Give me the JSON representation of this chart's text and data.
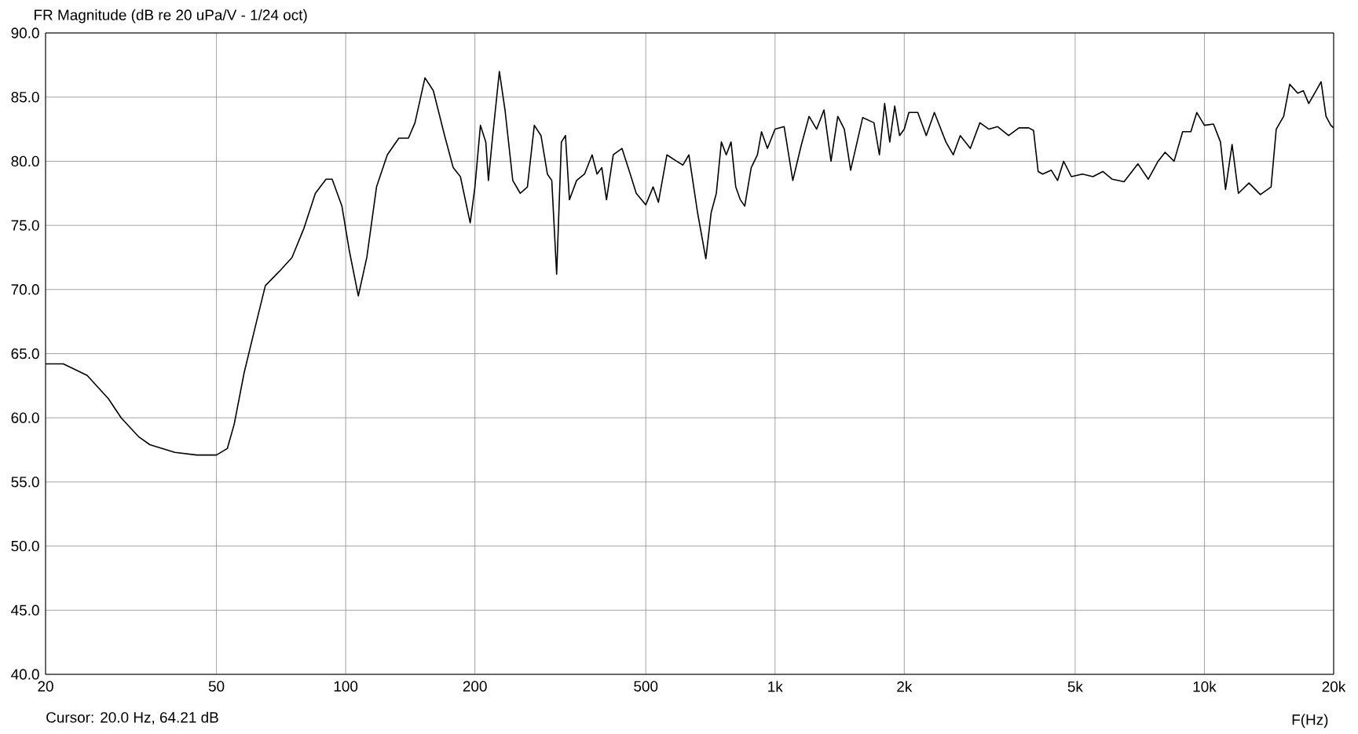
{
  "chart_data": {
    "type": "line",
    "title": "FR Magnitude (dB re 20 uPa/V - 1/24 oct)",
    "xlabel": "F(Hz)",
    "annotations": [
      "Cursor: 20.0 Hz, 64.21 dB"
    ],
    "log": "x",
    "grid": true,
    "color": "#000000",
    "xlim": [
      20,
      20000
    ],
    "xticks": [
      20,
      50,
      100,
      200,
      500,
      {
        "value": 1000,
        "label": "1k"
      },
      {
        "value": 2000,
        "label": "2k"
      },
      {
        "value": 5000,
        "label": "5k"
      },
      {
        "value": 10000,
        "label": "10k"
      },
      {
        "value": 20000,
        "label": "20k"
      }
    ],
    "ylim": [
      40,
      90
    ],
    "yticks": [
      {
        "value": 40,
        "label": "40.0"
      },
      {
        "value": 45,
        "label": "45.0"
      },
      {
        "value": 50,
        "label": "50.0"
      },
      {
        "value": 55,
        "label": "55.0"
      },
      {
        "value": 60,
        "label": "60.0"
      },
      {
        "value": 65,
        "label": "65.0"
      },
      {
        "value": 70,
        "label": "70.0"
      },
      {
        "value": 75,
        "label": "75.0"
      },
      {
        "value": 80,
        "label": "80.0"
      },
      {
        "value": 85,
        "label": "85.0"
      },
      {
        "value": 90,
        "label": "90.0"
      }
    ],
    "x": [
      20,
      22,
      25,
      28,
      30,
      33,
      35,
      40,
      45,
      50,
      53,
      55,
      58,
      62,
      65,
      70,
      75,
      80,
      85,
      90,
      93,
      98,
      102,
      107,
      112,
      118,
      125,
      133,
      140,
      145,
      153,
      160,
      170,
      178,
      185,
      195,
      200,
      206,
      212,
      215,
      220,
      228,
      235,
      245,
      255,
      265,
      275,
      285,
      295,
      302,
      310,
      318,
      325,
      332,
      345,
      360,
      375,
      385,
      395,
      405,
      420,
      440,
      460,
      475,
      500,
      520,
      535,
      560,
      590,
      610,
      630,
      660,
      690,
      710,
      730,
      750,
      770,
      790,
      810,
      830,
      850,
      880,
      910,
      930,
      960,
      1000,
      1050,
      1100,
      1150,
      1200,
      1250,
      1300,
      1350,
      1400,
      1450,
      1500,
      1600,
      1700,
      1750,
      1800,
      1850,
      1900,
      1950,
      2000,
      2050,
      2150,
      2250,
      2350,
      2500,
      2600,
      2700,
      2850,
      3000,
      3150,
      3300,
      3500,
      3700,
      3900,
      4000,
      4100,
      4200,
      4400,
      4550,
      4700,
      4900,
      5200,
      5500,
      5800,
      6100,
      6500,
      7000,
      7400,
      7800,
      8100,
      8500,
      8900,
      9300,
      9600,
      10000,
      10500,
      10900,
      11200,
      11600,
      12000,
      12700,
      13500,
      14300,
      14700,
      15300,
      15800,
      16500,
      17000,
      17500,
      18200,
      18700,
      19200,
      19700,
      20000
    ],
    "values": [
      64.2,
      64.2,
      63.3,
      61.5,
      60.0,
      58.5,
      57.9,
      57.3,
      57.1,
      57.1,
      57.6,
      59.5,
      63.5,
      67.5,
      70.3,
      71.4,
      72.5,
      74.8,
      77.5,
      78.6,
      78.6,
      76.5,
      73,
      69.5,
      72.5,
      78,
      80.5,
      81.8,
      81.8,
      83,
      86.5,
      85.5,
      82,
      79.5,
      78.8,
      75.2,
      78,
      82.8,
      81.5,
      78.5,
      82,
      87,
      84,
      78.5,
      77.5,
      78,
      82.8,
      82,
      79,
      78.5,
      71.2,
      81.5,
      82,
      77,
      78.5,
      79,
      80.5,
      79,
      79.5,
      77,
      80.5,
      81,
      79,
      77.5,
      76.6,
      78,
      76.8,
      80.5,
      80,
      79.7,
      80.5,
      76,
      72.4,
      76,
      77.5,
      81.5,
      80.5,
      81.5,
      78,
      77,
      76.5,
      79.5,
      80.5,
      82.3,
      81,
      82.5,
      82.7,
      78.5,
      81.2,
      83.5,
      82.5,
      84,
      80,
      83.5,
      82.5,
      79.3,
      83.4,
      83,
      80.5,
      84.5,
      81.5,
      84.3,
      82,
      82.5,
      83.8,
      83.8,
      82,
      83.8,
      81.5,
      80.5,
      82,
      81,
      83,
      82.5,
      82.7,
      82,
      82.6,
      82.6,
      82.4,
      79.2,
      79,
      79.3,
      78.5,
      80,
      78.8,
      79,
      78.8,
      79.2,
      78.6,
      78.4,
      79.8,
      78.6,
      80,
      80.7,
      80,
      82.3,
      82.3,
      83.8,
      82.8,
      82.9,
      81.5,
      77.8,
      81.3,
      77.5,
      78.3,
      77.4,
      78,
      82.5,
      83.5,
      86,
      85.3,
      85.5,
      84.5,
      85.5,
      86.2,
      83.5,
      82.8,
      82.6
    ]
  }
}
